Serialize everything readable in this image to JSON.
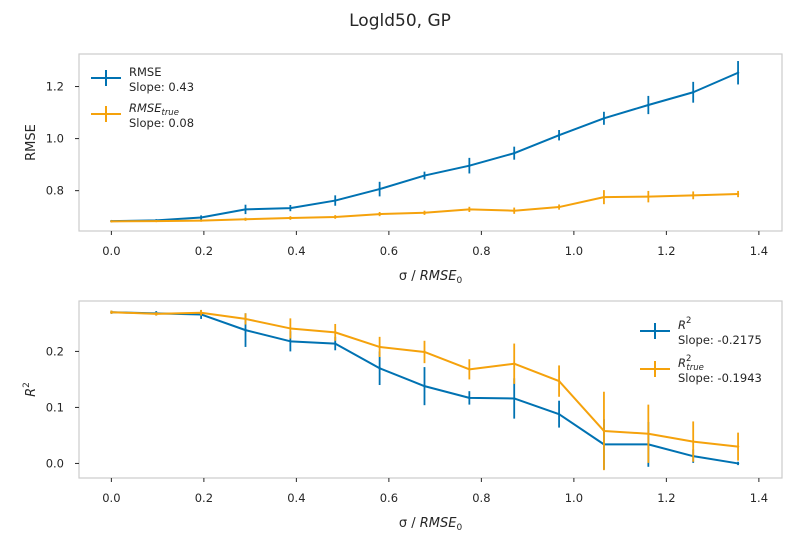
{
  "figure": {
    "suptitle": "Logld50, GP",
    "colors": {
      "blue": "#0072b2",
      "orange": "#f5a20c",
      "frame": "#cccccc",
      "text": "#262626"
    }
  },
  "chart_data": [
    {
      "type": "line",
      "xlabel_parts": [
        "σ / ",
        "RMSE",
        "0"
      ],
      "ylabel": "RMSE",
      "xlim": [
        -0.07,
        1.45
      ],
      "ylim": [
        0.645,
        1.325
      ],
      "xticks": [
        0.0,
        0.2,
        0.4,
        0.6,
        0.8,
        1.0,
        1.2,
        1.4
      ],
      "xtick_labels": [
        "0.0",
        "0.2",
        "0.4",
        "0.6",
        "0.8",
        "1.0",
        "1.2",
        "1.4"
      ],
      "yticks": [
        0.8,
        1.0,
        1.2
      ],
      "ytick_labels": [
        "0.8",
        "1.0",
        "1.2"
      ],
      "grid": false,
      "legend_position": "top-left",
      "x": [
        0.0,
        0.097,
        0.194,
        0.29,
        0.387,
        0.484,
        0.58,
        0.677,
        0.774,
        0.871,
        0.968,
        1.065,
        1.161,
        1.258,
        1.355
      ],
      "series": [
        {
          "name": "RMSE",
          "name_sub": "",
          "slope_label": "Slope: 0.43",
          "color": "#0072b2",
          "y": [
            0.683,
            0.686,
            0.697,
            0.728,
            0.733,
            0.762,
            0.806,
            0.858,
            0.896,
            0.944,
            1.013,
            1.078,
            1.129,
            1.178,
            1.253
          ],
          "yerr": [
            0.004,
            0.004,
            0.008,
            0.018,
            0.012,
            0.02,
            0.028,
            0.015,
            0.03,
            0.025,
            0.02,
            0.025,
            0.035,
            0.04,
            0.045
          ]
        },
        {
          "name": "RMSE",
          "name_sub": "true",
          "slope_label": "Slope: 0.08",
          "color": "#f5a20c",
          "y": [
            0.682,
            0.683,
            0.685,
            0.69,
            0.695,
            0.699,
            0.71,
            0.715,
            0.728,
            0.723,
            0.737,
            0.775,
            0.777,
            0.782,
            0.787
          ],
          "yerr": [
            0.003,
            0.003,
            0.004,
            0.006,
            0.007,
            0.007,
            0.008,
            0.008,
            0.01,
            0.012,
            0.01,
            0.027,
            0.022,
            0.015,
            0.012
          ]
        }
      ]
    },
    {
      "type": "line",
      "xlabel_parts": [
        "σ / ",
        "RMSE",
        "0"
      ],
      "ylabel": "R",
      "ylabel_sup": "2",
      "xlim": [
        -0.07,
        1.45
      ],
      "ylim": [
        -0.026,
        0.29
      ],
      "xticks": [
        0.0,
        0.2,
        0.4,
        0.6,
        0.8,
        1.0,
        1.2,
        1.4
      ],
      "xtick_labels": [
        "0.0",
        "0.2",
        "0.4",
        "0.6",
        "0.8",
        "1.0",
        "1.2",
        "1.4"
      ],
      "yticks": [
        0.0,
        0.1,
        0.2
      ],
      "ytick_labels": [
        "0.0",
        "0.1",
        "0.2"
      ],
      "grid": false,
      "legend_position": "top-right",
      "x": [
        0.0,
        0.097,
        0.194,
        0.29,
        0.387,
        0.484,
        0.58,
        0.677,
        0.774,
        0.871,
        0.968,
        1.065,
        1.161,
        1.258,
        1.355
      ],
      "series": [
        {
          "name": "R",
          "name_sup": "2",
          "name_sub": "",
          "slope_label": "Slope: -0.2175",
          "color": "#0072b2",
          "y": [
            0.27,
            0.268,
            0.266,
            0.238,
            0.218,
            0.214,
            0.17,
            0.138,
            0.117,
            0.116,
            0.088,
            0.034,
            0.034,
            0.013,
            0.0
          ],
          "yerr": [
            0.003,
            0.004,
            0.008,
            0.03,
            0.018,
            0.012,
            0.03,
            0.034,
            0.012,
            0.036,
            0.024,
            0.045,
            0.04,
            0.012,
            0.003
          ]
        },
        {
          "name": "R",
          "name_sup": "2",
          "name_sub": "true",
          "slope_label": "Slope: -0.1943",
          "color": "#f5a20c",
          "y": [
            0.27,
            0.267,
            0.269,
            0.258,
            0.241,
            0.234,
            0.208,
            0.199,
            0.168,
            0.178,
            0.147,
            0.058,
            0.053,
            0.039,
            0.03
          ],
          "yerr": [
            0.003,
            0.003,
            0.005,
            0.01,
            0.018,
            0.015,
            0.018,
            0.02,
            0.018,
            0.036,
            0.028,
            0.07,
            0.052,
            0.036,
            0.025
          ]
        }
      ]
    }
  ]
}
